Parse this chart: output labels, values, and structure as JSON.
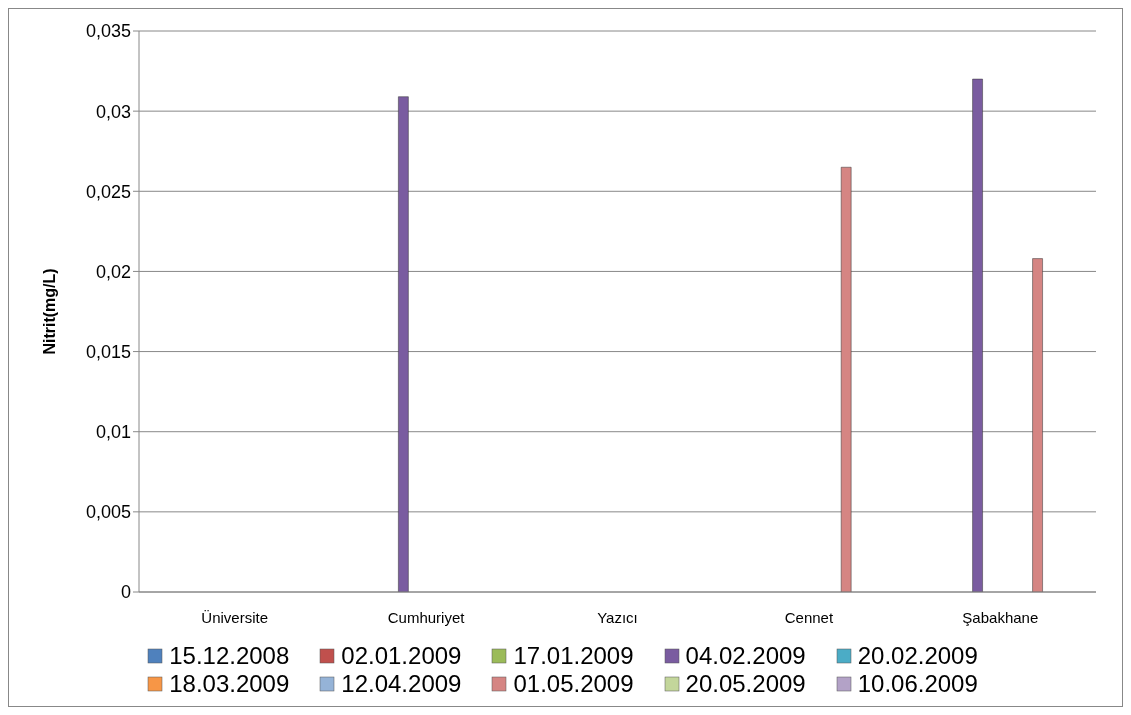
{
  "chart_data": {
    "type": "bar",
    "ylabel": "Nitrit(mg/L)",
    "categories": [
      "Üniversite",
      "Cumhuriyet",
      "Yazıcı",
      "Cennet",
      "Şabakhane"
    ],
    "series": [
      {
        "name": "15.12.2008",
        "color": "#4f81bd",
        "values": [
          null,
          null,
          null,
          null,
          null
        ]
      },
      {
        "name": "02.01.2009",
        "color": "#c0504d",
        "values": [
          null,
          null,
          null,
          null,
          null
        ]
      },
      {
        "name": "17.01.2009",
        "color": "#9bbb59",
        "values": [
          null,
          null,
          null,
          null,
          null
        ]
      },
      {
        "name": "04.02.2009",
        "color": "#7a5ca0",
        "values": [
          null,
          0.0309,
          null,
          null,
          0.032
        ]
      },
      {
        "name": "20.02.2009",
        "color": "#4bacc6",
        "values": [
          null,
          null,
          null,
          null,
          null
        ]
      },
      {
        "name": "18.03.2009",
        "color": "#f79646",
        "values": [
          null,
          null,
          null,
          null,
          null
        ]
      },
      {
        "name": "12.04.2009",
        "color": "#95b3d7",
        "values": [
          null,
          null,
          null,
          null,
          null
        ]
      },
      {
        "name": "01.05.2009",
        "color": "#d58583",
        "values": [
          null,
          null,
          null,
          0.0265,
          0.0208
        ]
      },
      {
        "name": "20.05.2009",
        "color": "#c3d69b",
        "values": [
          null,
          null,
          null,
          null,
          null
        ]
      },
      {
        "name": "10.06.2009",
        "color": "#b3a2c7",
        "values": [
          null,
          null,
          null,
          null,
          null
        ]
      }
    ],
    "ylim": [
      0,
      0.035
    ],
    "yticks": [
      {
        "value": 0,
        "label": "0"
      },
      {
        "value": 0.005,
        "label": "0,005"
      },
      {
        "value": 0.01,
        "label": "0,01"
      },
      {
        "value": 0.015,
        "label": "0,015"
      },
      {
        "value": 0.02,
        "label": "0,02"
      },
      {
        "value": 0.025,
        "label": "0,025"
      },
      {
        "value": 0.03,
        "label": "0,03"
      },
      {
        "value": 0.035,
        "label": "0,035"
      }
    ],
    "grid": "y",
    "legend": "bottom"
  }
}
